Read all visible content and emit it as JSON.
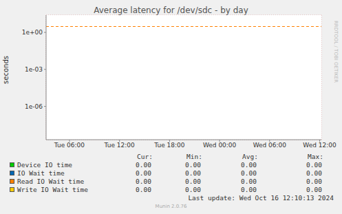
{
  "chart_data": {
    "type": "line",
    "title": "Average latency for /dev/sdc - by day",
    "y_label": "seconds",
    "log": "y",
    "grid": true,
    "xlim": [
      3.2,
      36.2
    ],
    "xticks": [
      {
        "value": 6,
        "label": "Tue 06:00"
      },
      {
        "value": 12,
        "label": "Tue 12:00"
      },
      {
        "value": 18,
        "label": "Tue 18:00"
      },
      {
        "value": 24,
        "label": "Wed 00:00"
      },
      {
        "value": 30,
        "label": "Wed 06:00"
      },
      {
        "value": 36,
        "label": "Wed 12:00"
      }
    ],
    "ylim": [
      2e-09,
      25
    ],
    "yticks": [
      {
        "value": 1,
        "label": "1e+00"
      },
      {
        "value": 0.001,
        "label": "1e-03"
      },
      {
        "value": 1e-06,
        "label": "1e-06"
      }
    ],
    "reference_line": {
      "value": 3,
      "color": "#ff8000",
      "line_style": "dashed"
    },
    "legend_columns": [
      "Cur:",
      "Min:",
      "Avg:",
      "Max:"
    ],
    "series": [
      {
        "name": "Device IO time",
        "color": "#00cc00",
        "stats": [
          "0.00",
          "0.00",
          "0.00",
          "0.00"
        ]
      },
      {
        "name": "IO Wait time",
        "color": "#0066b3",
        "stats": [
          "0.00",
          "0.00",
          "0.00",
          "0.00"
        ]
      },
      {
        "name": "Read IO Wait time",
        "color": "#ff8000",
        "stats": [
          "0.00",
          "0.00",
          "0.00",
          "0.00"
        ]
      },
      {
        "name": "Write IO Wait time",
        "color": "#ffcc00",
        "stats": [
          "0.00",
          "0.00",
          "0.00",
          "0.00"
        ]
      }
    ],
    "last_update": "Last update: Wed Oct 16 12:10:13 2024",
    "footer": "Munin 2.0.76",
    "watermark": "RRDTOOL / TOBI OETIKER"
  }
}
